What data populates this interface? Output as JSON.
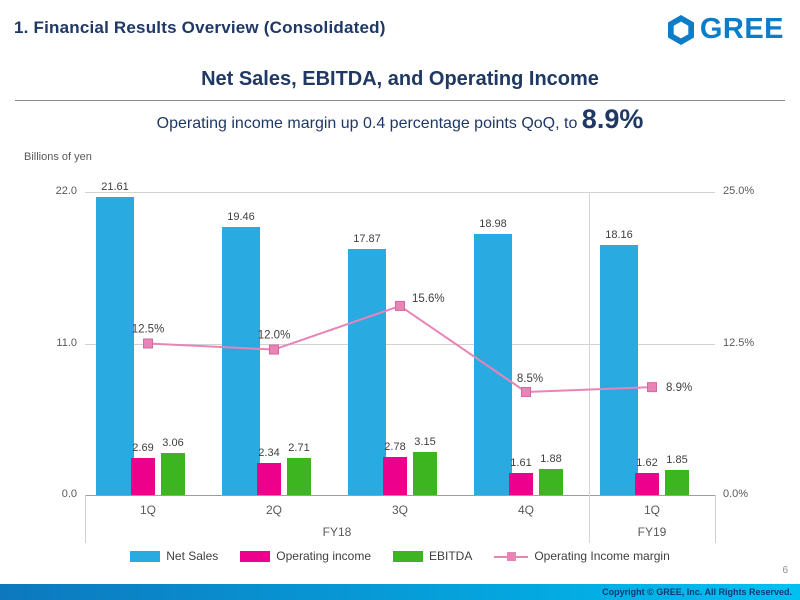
{
  "header": {
    "section_title": "1. Financial Results Overview (Consolidated)",
    "logo_text": "GREE"
  },
  "slide": {
    "title": "Net Sales, EBITDA, and Operating Income",
    "subtitle_prefix": "Operating income margin up 0.4 percentage points QoQ, to ",
    "subtitle_highlight": "8.9%"
  },
  "chart_data": {
    "type": "bar",
    "subtype": "combo-bar-line",
    "unit_label": "Billions of yen",
    "categories": [
      "1Q",
      "2Q",
      "3Q",
      "4Q",
      "1Q"
    ],
    "group_labels": [
      {
        "label": "FY18",
        "from": 0,
        "to": 3
      },
      {
        "label": "FY19",
        "from": 4,
        "to": 4
      }
    ],
    "series": [
      {
        "name": "Net Sales",
        "kind": "bar",
        "color": "#29abe2",
        "values": [
          21.61,
          19.46,
          17.87,
          18.98,
          18.16
        ]
      },
      {
        "name": "Operating income",
        "kind": "bar",
        "color": "#ec008c",
        "values": [
          2.69,
          2.34,
          2.78,
          1.61,
          1.62
        ]
      },
      {
        "name": "EBITDA",
        "kind": "bar",
        "color": "#3cb521",
        "values": [
          3.06,
          2.71,
          3.15,
          1.88,
          1.85
        ]
      },
      {
        "name": "Operating Income margin",
        "kind": "line",
        "axis": "right",
        "color": "#e884b6",
        "values": [
          12.5,
          12.0,
          15.6,
          8.5,
          8.9
        ],
        "point_labels": [
          "12.5%",
          "12.0%",
          "15.6%",
          "8.5%",
          "8.9%"
        ]
      }
    ],
    "left_axis": {
      "min": 0,
      "max": 22,
      "ticks": [
        {
          "value": 22,
          "label": "22.0"
        },
        {
          "value": 11,
          "label": "11.0"
        },
        {
          "value": 0,
          "label": "0.0"
        }
      ]
    },
    "right_axis": {
      "min": 0,
      "max": 25,
      "ticks": [
        {
          "value": 25,
          "label": "25.0%"
        },
        {
          "value": 12.5,
          "label": "12.5%"
        },
        {
          "value": 0,
          "label": "0.0%"
        }
      ]
    },
    "grid": true,
    "legend_position": "bottom"
  },
  "footer": {
    "page_number": "6",
    "copyright": "Copyright © GREE, Inc. All Rights Reserved."
  }
}
